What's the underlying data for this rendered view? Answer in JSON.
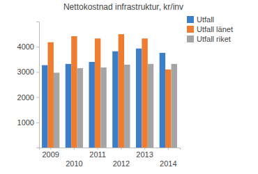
{
  "chart_data": {
    "type": "bar",
    "title": "Nettokostnad infrastruktur, kr/inv",
    "categories": [
      "2009",
      "2010",
      "2011",
      "2012",
      "2013",
      "2014"
    ],
    "series": [
      {
        "name": "Utfall",
        "color": "#3c7ec8",
        "values": [
          3270,
          3320,
          3400,
          3820,
          3930,
          3760
        ]
      },
      {
        "name": "Utfall länet",
        "color": "#ee7d31",
        "values": [
          4180,
          4420,
          4330,
          4500,
          4330,
          3100
        ]
      },
      {
        "name": "Utfall riket",
        "color": "#a5a5a5",
        "values": [
          2970,
          3150,
          3180,
          3290,
          3320,
          3320
        ]
      }
    ],
    "ylim": [
      0,
      5000
    ],
    "yticks": [
      1000,
      2000,
      3000,
      4000
    ],
    "grid": false,
    "legend": "right"
  }
}
